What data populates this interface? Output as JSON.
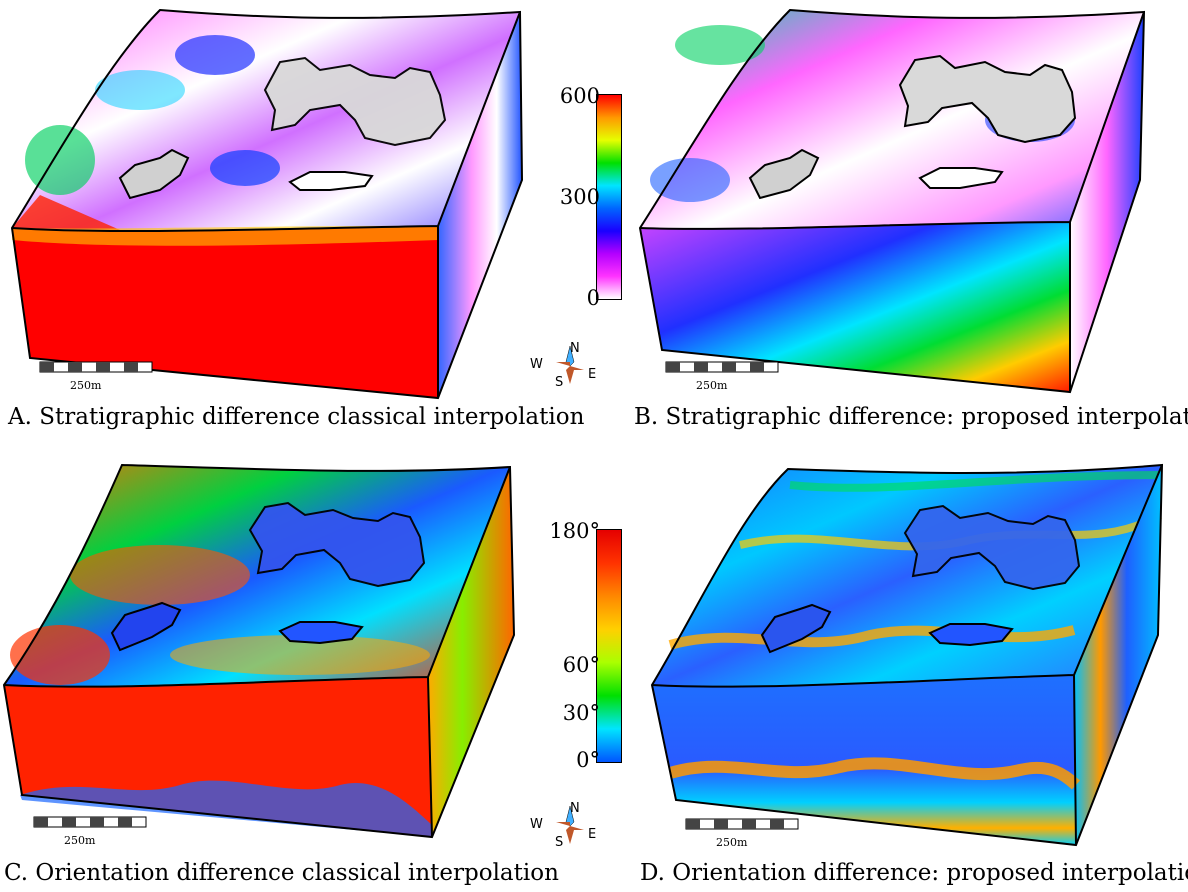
{
  "panels": [
    {
      "id": "A",
      "caption": "A. Stratigraphic difference classical interpolation",
      "scale_label": "250m"
    },
    {
      "id": "B",
      "caption": "B. Stratigraphic difference: proposed interpolation",
      "scale_label": "250m"
    },
    {
      "id": "C",
      "caption": "C. Orientation difference classical interpolation",
      "scale_label": "250m"
    },
    {
      "id": "D",
      "caption": "D. Orientation difference: proposed interpolation",
      "scale_label": "250m"
    }
  ],
  "colorbar_top": {
    "ticks": [
      "600",
      "300",
      "0"
    ],
    "colors": [
      "#ff0000",
      "#ff9900",
      "#e6ff00",
      "#00e000",
      "#00e5ff",
      "#0066ff",
      "#1a00ff",
      "#b300ff",
      "#ff33ff",
      "#ffffff"
    ]
  },
  "colorbar_bottom": {
    "ticks": [
      "180°",
      "60°",
      "30°",
      "0°"
    ],
    "colors": [
      "#e50000",
      "#ff3300",
      "#ff8800",
      "#ffd000",
      "#aaff00",
      "#00e000",
      "#00e5ff",
      "#0055ff"
    ]
  },
  "compass": {
    "n": "N",
    "s": "S",
    "e": "E",
    "w": "W"
  }
}
